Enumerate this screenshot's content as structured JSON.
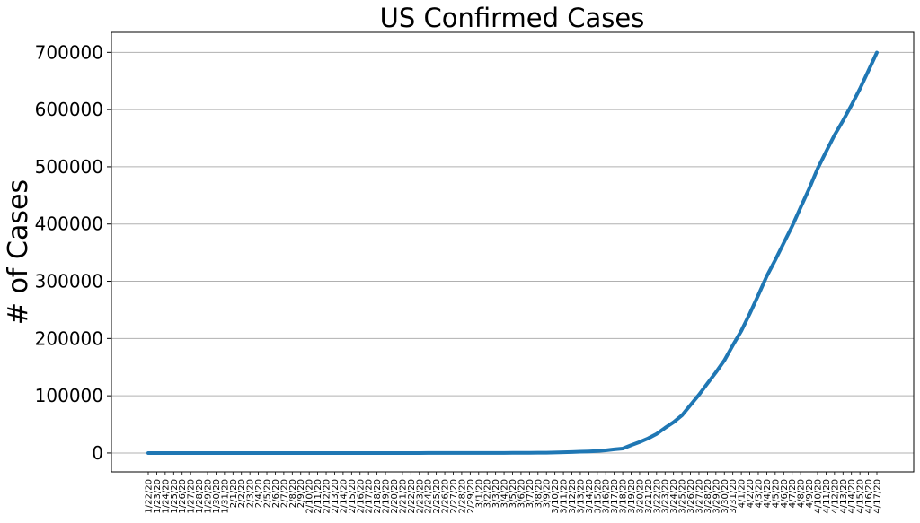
{
  "chart_data": {
    "type": "line",
    "title": "US Confirmed Cases",
    "xlabel": "",
    "ylabel": "# of Cases",
    "ylim": [
      -33000,
      735000
    ],
    "yticks": [
      0,
      100000,
      200000,
      300000,
      400000,
      500000,
      600000,
      700000
    ],
    "ytick_labels": [
      "0",
      "100000",
      "200000",
      "300000",
      "400000",
      "500000",
      "600000",
      "700000"
    ],
    "grid": "horizontal",
    "line_color": "#1f77b4",
    "x": [
      "1/22/20",
      "1/23/20",
      "1/24/20",
      "1/25/20",
      "1/26/20",
      "1/27/20",
      "1/28/20",
      "1/29/20",
      "1/30/20",
      "1/31/20",
      "2/1/20",
      "2/2/20",
      "2/3/20",
      "2/4/20",
      "2/5/20",
      "2/6/20",
      "2/7/20",
      "2/8/20",
      "2/9/20",
      "2/10/20",
      "2/11/20",
      "2/12/20",
      "2/13/20",
      "2/14/20",
      "2/15/20",
      "2/16/20",
      "2/17/20",
      "2/18/20",
      "2/19/20",
      "2/20/20",
      "2/21/20",
      "2/22/20",
      "2/23/20",
      "2/24/20",
      "2/25/20",
      "2/26/20",
      "2/27/20",
      "2/28/20",
      "2/29/20",
      "3/1/20",
      "3/2/20",
      "3/3/20",
      "3/4/20",
      "3/5/20",
      "3/6/20",
      "3/7/20",
      "3/8/20",
      "3/9/20",
      "3/10/20",
      "3/11/20",
      "3/12/20",
      "3/13/20",
      "3/14/20",
      "3/15/20",
      "3/16/20",
      "3/17/20",
      "3/18/20",
      "3/19/20",
      "3/20/20",
      "3/21/20",
      "3/22/20",
      "3/23/20",
      "3/24/20",
      "3/25/20",
      "3/26/20",
      "3/27/20",
      "3/28/20",
      "3/29/20",
      "3/30/20",
      "3/31/20",
      "4/1/20",
      "4/2/20",
      "4/3/20",
      "4/4/20",
      "4/5/20",
      "4/6/20",
      "4/7/20",
      "4/8/20",
      "4/9/20",
      "4/10/20",
      "4/11/20",
      "4/12/20",
      "4/13/20",
      "4/14/20",
      "4/15/20",
      "4/16/20",
      "4/17/20"
    ],
    "series": [
      {
        "values": [
          1,
          1,
          2,
          2,
          5,
          5,
          5,
          5,
          5,
          7,
          8,
          8,
          11,
          11,
          11,
          11,
          11,
          11,
          11,
          11,
          12,
          12,
          13,
          13,
          13,
          13,
          13,
          13,
          13,
          13,
          15,
          15,
          15,
          51,
          51,
          57,
          58,
          60,
          68,
          74,
          98,
          118,
          149,
          217,
          262,
          402,
          518,
          583,
          959,
          1281,
          1663,
          2179,
          2727,
          3499,
          4632,
          6421,
          7786,
          13680,
          19101,
          25493,
          33276,
          43847,
          53740,
          65778,
          83836,
          101657,
          121478,
          140886,
          161807,
          188172,
          213372,
          243453,
          275586,
          308850,
          337072,
          366614,
          396223,
          429052,
          461437,
          496535,
          526396,
          555313,
          580619,
          607670,
          636350,
          667801,
          699706
        ]
      }
    ]
  }
}
